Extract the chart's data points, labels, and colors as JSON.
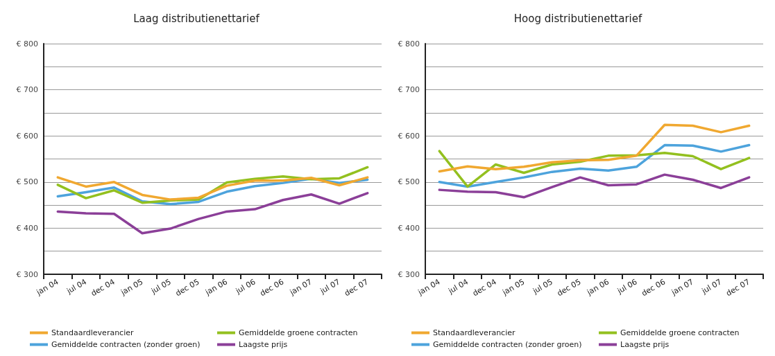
{
  "chart_data": [
    {
      "type": "line",
      "title": "Laag distributienettarief",
      "categories": [
        "jan 04",
        "jul 04",
        "dec 04",
        "jan 05",
        "jul 05",
        "dec 05",
        "jan 06",
        "jul 06",
        "dec 06",
        "jan 07",
        "jul 07",
        "dec 07"
      ],
      "series": [
        {
          "name": "Standaardleverancier",
          "color": "#f0a830",
          "values": [
            510,
            490,
            500,
            472,
            462,
            466,
            492,
            503,
            503,
            509,
            493,
            510
          ]
        },
        {
          "name": "Gemiddelde groene contracten",
          "color": "#93c01f",
          "values": [
            494,
            465,
            482,
            455,
            460,
            462,
            499,
            507,
            512,
            506,
            508,
            532
          ]
        },
        {
          "name": "Gemiddelde contracten (zonder groen)",
          "color": "#4da3dc",
          "values": [
            469,
            478,
            488,
            458,
            452,
            457,
            479,
            491,
            498,
            507,
            498,
            505
          ]
        },
        {
          "name": "Laagste prijs",
          "color": "#8b3f98",
          "values": [
            436,
            432,
            431,
            389,
            399,
            420,
            436,
            441,
            461,
            473,
            453,
            476
          ]
        }
      ],
      "ylim": [
        300,
        800
      ],
      "yticks": [
        {
          "value": 300,
          "label": "€ 300"
        },
        {
          "value": 350,
          "label": null
        },
        {
          "value": 400,
          "label": "€ 400"
        },
        {
          "value": 450,
          "label": null
        },
        {
          "value": 500,
          "label": "€ 500"
        },
        {
          "value": 550,
          "label": null
        },
        {
          "value": 600,
          "label": "€ 600"
        },
        {
          "value": 650,
          "label": null
        },
        {
          "value": 700,
          "label": "€ 700"
        },
        {
          "value": 750,
          "label": null
        },
        {
          "value": 800,
          "label": "€ 800"
        }
      ],
      "grid": "y",
      "legend": "bottom",
      "marker": "none",
      "line_style": "solid"
    },
    {
      "type": "line",
      "title": "Hoog distributienettarief",
      "categories": [
        "jan 04",
        "jul 04",
        "dec 04",
        "jan 05",
        "jul 05",
        "dec 05",
        "jan 06",
        "jul 06",
        "dec 06",
        "jan 07",
        "jul 07",
        "dec 07"
      ],
      "series": [
        {
          "name": "Standaardleverancier",
          "color": "#f0a830",
          "values": [
            523,
            534,
            528,
            533,
            543,
            547,
            548,
            557,
            624,
            622,
            608,
            622
          ]
        },
        {
          "name": "Gemiddelde groene contracten",
          "color": "#93c01f",
          "values": [
            567,
            490,
            538,
            520,
            538,
            544,
            557,
            558,
            563,
            556,
            528,
            552
          ]
        },
        {
          "name": "Gemiddelde contracten (zonder groen)",
          "color": "#4da3dc",
          "values": [
            500,
            490,
            500,
            510,
            522,
            529,
            525,
            533,
            580,
            579,
            566,
            580
          ]
        },
        {
          "name": "Laagste prijs",
          "color": "#8b3f98",
          "values": [
            483,
            479,
            478,
            467,
            489,
            510,
            493,
            495,
            516,
            505,
            487,
            510
          ]
        }
      ],
      "ylim": [
        300,
        800
      ],
      "yticks": [
        {
          "value": 300,
          "label": "€ 300"
        },
        {
          "value": 350,
          "label": null
        },
        {
          "value": 400,
          "label": "€ 400"
        },
        {
          "value": 450,
          "label": null
        },
        {
          "value": 500,
          "label": "€ 500"
        },
        {
          "value": 550,
          "label": null
        },
        {
          "value": 600,
          "label": "€ 600"
        },
        {
          "value": 650,
          "label": null
        },
        {
          "value": 700,
          "label": "€ 700"
        },
        {
          "value": 750,
          "label": null
        },
        {
          "value": 800,
          "label": "€ 800"
        }
      ],
      "grid": "y",
      "legend": "bottom",
      "marker": "none",
      "line_style": "solid"
    }
  ]
}
